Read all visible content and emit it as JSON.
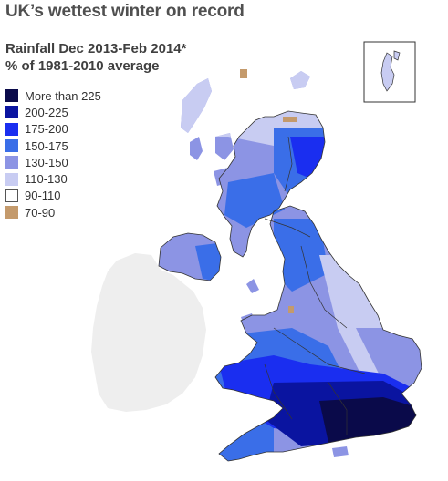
{
  "title": "UK’s wettest winter on record",
  "subtitle_line1": "Rainfall Dec 2013-Feb 2014*",
  "subtitle_line2": "% of 1981-2010 average",
  "legend": [
    {
      "label": "More than 225",
      "color": "#0a0a4a"
    },
    {
      "label": "200-225",
      "color": "#0a14a0"
    },
    {
      "label": "175-200",
      "color": "#1a2ef0"
    },
    {
      "label": "150-175",
      "color": "#3a6ee8"
    },
    {
      "label": "130-150",
      "color": "#8c94e4"
    },
    {
      "label": "110-130",
      "color": "#c8ccf2"
    },
    {
      "label": "90-110",
      "color": "#ffffff"
    },
    {
      "label": "70-90",
      "color": "#c49a6c"
    }
  ],
  "colors": {
    "ireland": "#eeeeee",
    "border": "#333333"
  }
}
